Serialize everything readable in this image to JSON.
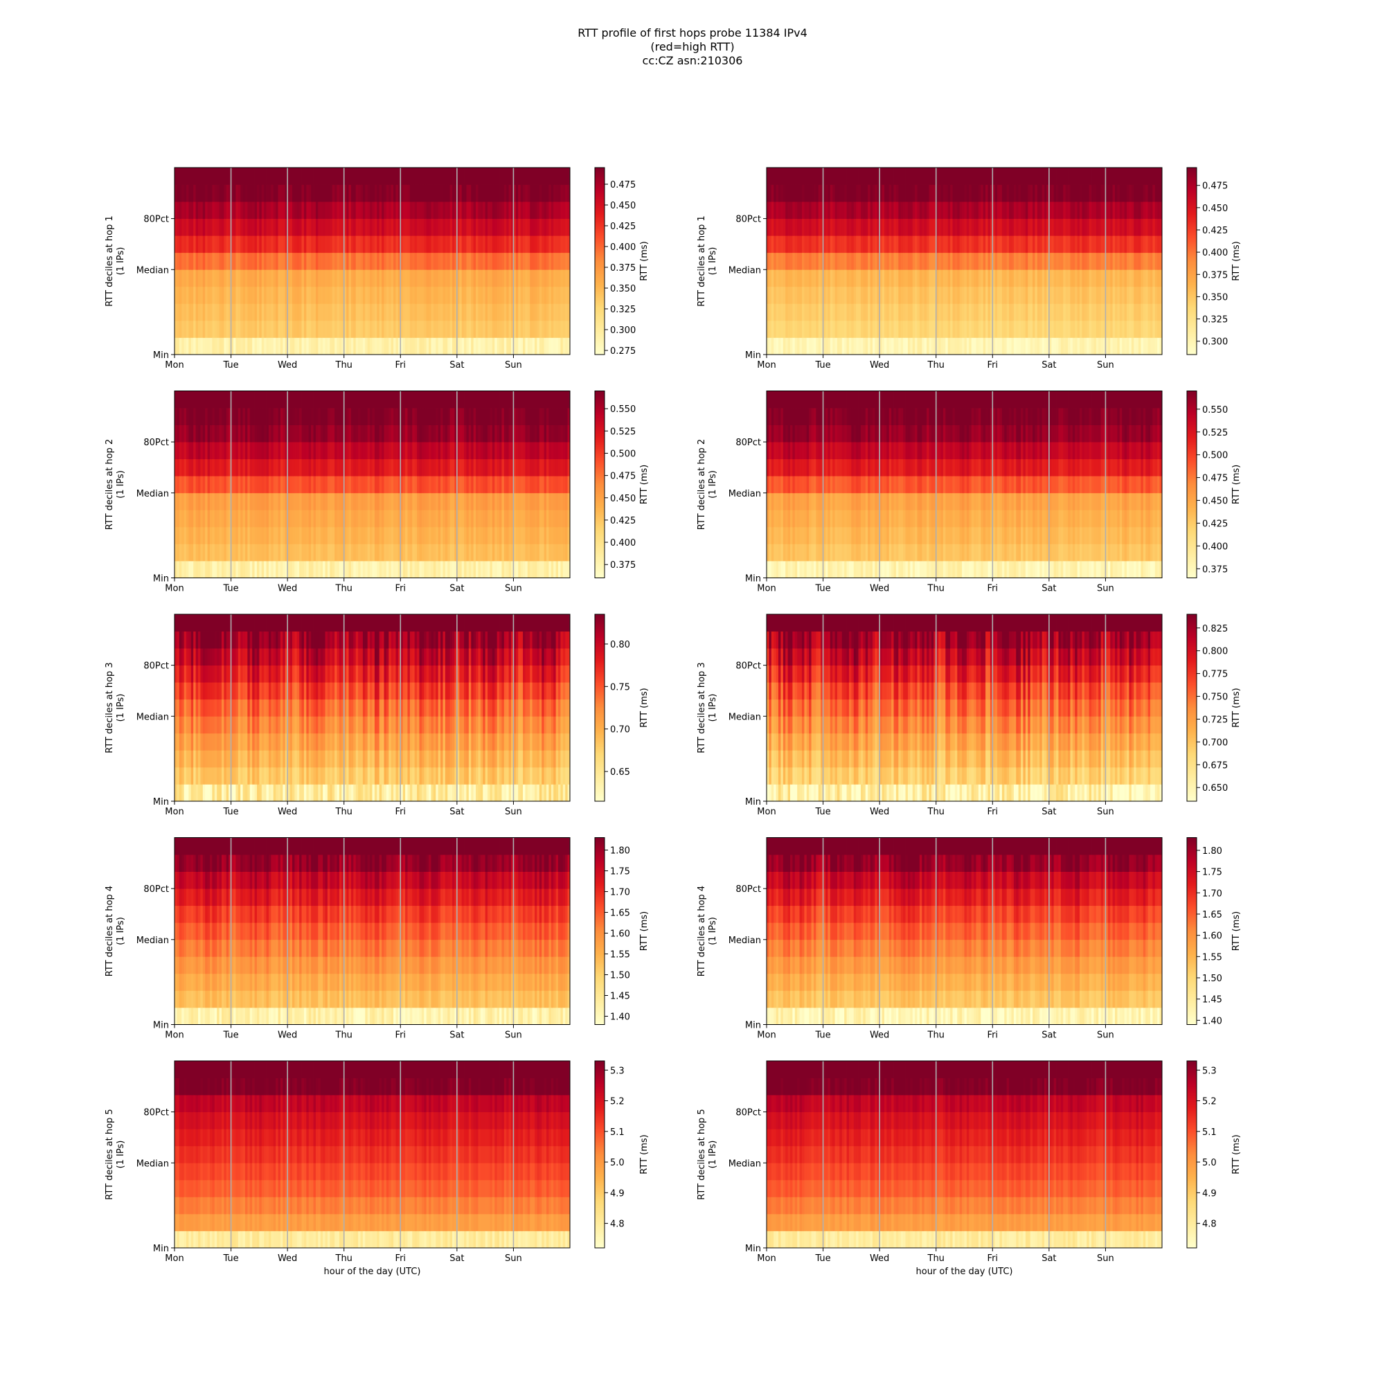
{
  "figure": {
    "title_lines": [
      "RTT profile of first hops probe 11384 IPv4",
      "(red=high RTT)",
      "cc:CZ asn:210306"
    ]
  },
  "colors": {
    "colormap": "YlOrRd",
    "grid_line": "#b0b0b0",
    "axes_edge": "#000000"
  },
  "chart_data": [
    {
      "type": "heatmap",
      "hop": 1,
      "column": "left",
      "ylabel": "RTT deciles at hop 1",
      "ylabel2": "(1 IPs)",
      "colorbar_label": "RTT (ms)",
      "colorbar_ticks": [
        "0.275",
        "0.300",
        "0.325",
        "0.350",
        "0.375",
        "0.400",
        "0.425",
        "0.450",
        "0.475"
      ],
      "clim": [
        0.27,
        0.495
      ],
      "decile_values": [
        0.29,
        0.338,
        0.345,
        0.352,
        0.36,
        0.395,
        0.43,
        0.455,
        0.475,
        0.495,
        0.495
      ],
      "variability": 0.012,
      "y_ticks": [
        "Min",
        "Median",
        "80Pct"
      ],
      "x_ticks": [
        "Mon",
        "Tue",
        "Wed",
        "Thu",
        "Fri",
        "Sat",
        "Sun"
      ],
      "xlabel": "",
      "seed": 11
    },
    {
      "type": "heatmap",
      "hop": 1,
      "column": "right",
      "ylabel": "RTT deciles at hop 1",
      "ylabel2": "(1 IPs)",
      "colorbar_label": "RTT (ms)",
      "colorbar_ticks": [
        "0.300",
        "0.325",
        "0.350",
        "0.375",
        "0.400",
        "0.425",
        "0.450",
        "0.475"
      ],
      "clim": [
        0.285,
        0.495
      ],
      "decile_values": [
        0.3,
        0.338,
        0.345,
        0.352,
        0.36,
        0.395,
        0.43,
        0.455,
        0.475,
        0.495,
        0.495
      ],
      "variability": 0.01,
      "y_ticks": [
        "Min",
        "Median",
        "80Pct"
      ],
      "x_ticks": [
        "Mon",
        "Tue",
        "Wed",
        "Thu",
        "Fri",
        "Sat",
        "Sun"
      ],
      "xlabel": "",
      "seed": 12
    },
    {
      "type": "heatmap",
      "hop": 2,
      "column": "left",
      "ylabel": "RTT deciles at hop 2",
      "ylabel2": "(1 IPs)",
      "colorbar_label": "RTT (ms)",
      "colorbar_ticks": [
        "0.375",
        "0.400",
        "0.425",
        "0.450",
        "0.475",
        "0.500",
        "0.525",
        "0.550"
      ],
      "clim": [
        0.36,
        0.57
      ],
      "decile_values": [
        0.38,
        0.43,
        0.438,
        0.445,
        0.452,
        0.49,
        0.52,
        0.54,
        0.56,
        0.57,
        0.57
      ],
      "variability": 0.012,
      "y_ticks": [
        "Min",
        "Median",
        "80Pct"
      ],
      "x_ticks": [
        "Mon",
        "Tue",
        "Wed",
        "Thu",
        "Fri",
        "Sat",
        "Sun"
      ],
      "xlabel": "",
      "seed": 21
    },
    {
      "type": "heatmap",
      "hop": 2,
      "column": "right",
      "ylabel": "RTT deciles at hop 2",
      "ylabel2": "(1 IPs)",
      "colorbar_label": "RTT (ms)",
      "colorbar_ticks": [
        "0.375",
        "0.400",
        "0.425",
        "0.450",
        "0.475",
        "0.500",
        "0.525",
        "0.550"
      ],
      "clim": [
        0.365,
        0.57
      ],
      "decile_values": [
        0.38,
        0.43,
        0.438,
        0.445,
        0.452,
        0.49,
        0.52,
        0.54,
        0.56,
        0.57,
        0.57
      ],
      "variability": 0.012,
      "y_ticks": [
        "Min",
        "Median",
        "80Pct"
      ],
      "x_ticks": [
        "Mon",
        "Tue",
        "Wed",
        "Thu",
        "Fri",
        "Sat",
        "Sun"
      ],
      "xlabel": "",
      "seed": 22
    },
    {
      "type": "heatmap",
      "hop": 3,
      "column": "left",
      "ylabel": "RTT deciles at hop 3",
      "ylabel2": "(1 IPs)",
      "colorbar_label": "RTT (ms)",
      "colorbar_ticks": [
        "0.65",
        "0.70",
        "0.75",
        "0.80"
      ],
      "clim": [
        0.615,
        0.835
      ],
      "decile_values": [
        0.64,
        0.68,
        0.695,
        0.71,
        0.725,
        0.74,
        0.76,
        0.78,
        0.8,
        0.82,
        0.835
      ],
      "variability": 0.03,
      "y_ticks": [
        "Min",
        "Median",
        "80Pct"
      ],
      "x_ticks": [
        "Mon",
        "Tue",
        "Wed",
        "Thu",
        "Fri",
        "Sat",
        "Sun"
      ],
      "xlabel": "",
      "seed": 31
    },
    {
      "type": "heatmap",
      "hop": 3,
      "column": "right",
      "ylabel": "RTT deciles at hop 3",
      "ylabel2": "(1 IPs)",
      "colorbar_label": "RTT (ms)",
      "colorbar_ticks": [
        "0.650",
        "0.675",
        "0.700",
        "0.725",
        "0.750",
        "0.775",
        "0.800",
        "0.825"
      ],
      "clim": [
        0.635,
        0.84
      ],
      "decile_values": [
        0.655,
        0.69,
        0.705,
        0.72,
        0.735,
        0.75,
        0.765,
        0.785,
        0.805,
        0.825,
        0.84
      ],
      "variability": 0.03,
      "y_ticks": [
        "Min",
        "Median",
        "80Pct"
      ],
      "x_ticks": [
        "Mon",
        "Tue",
        "Wed",
        "Thu",
        "Fri",
        "Sat",
        "Sun"
      ],
      "xlabel": "",
      "seed": 32
    },
    {
      "type": "heatmap",
      "hop": 4,
      "column": "left",
      "ylabel": "RTT deciles at hop 4",
      "ylabel2": "(1 IPs)",
      "colorbar_label": "RTT (ms)",
      "colorbar_ticks": [
        "1.40",
        "1.45",
        "1.50",
        "1.55",
        "1.60",
        "1.65",
        "1.70",
        "1.75",
        "1.80"
      ],
      "clim": [
        1.38,
        1.83
      ],
      "decile_values": [
        1.42,
        1.53,
        1.56,
        1.59,
        1.62,
        1.65,
        1.68,
        1.72,
        1.76,
        1.81,
        1.83
      ],
      "variability": 0.035,
      "y_ticks": [
        "Min",
        "Median",
        "80Pct"
      ],
      "x_ticks": [
        "Mon",
        "Tue",
        "Wed",
        "Thu",
        "Fri",
        "Sat",
        "Sun"
      ],
      "xlabel": "",
      "seed": 41
    },
    {
      "type": "heatmap",
      "hop": 4,
      "column": "right",
      "ylabel": "RTT deciles at hop 4",
      "ylabel2": "(1 IPs)",
      "colorbar_label": "RTT (ms)",
      "colorbar_ticks": [
        "1.40",
        "1.45",
        "1.50",
        "1.55",
        "1.60",
        "1.65",
        "1.70",
        "1.75",
        "1.80"
      ],
      "clim": [
        1.39,
        1.83
      ],
      "decile_values": [
        1.42,
        1.53,
        1.56,
        1.59,
        1.62,
        1.65,
        1.68,
        1.72,
        1.76,
        1.81,
        1.83
      ],
      "variability": 0.035,
      "y_ticks": [
        "Min",
        "Median",
        "80Pct"
      ],
      "x_ticks": [
        "Mon",
        "Tue",
        "Wed",
        "Thu",
        "Fri",
        "Sat",
        "Sun"
      ],
      "xlabel": "",
      "seed": 42
    },
    {
      "type": "heatmap",
      "hop": 5,
      "column": "left",
      "ylabel": "RTT deciles at hop 5",
      "ylabel2": "(1 IPs)",
      "colorbar_label": "RTT (ms)",
      "colorbar_ticks": [
        "4.8",
        "4.9",
        "5.0",
        "5.1",
        "5.2",
        "5.3"
      ],
      "clim": [
        4.72,
        5.33
      ],
      "decile_values": [
        4.8,
        4.99,
        5.04,
        5.08,
        5.11,
        5.14,
        5.17,
        5.2,
        5.24,
        5.33,
        5.33
      ],
      "variability": 0.03,
      "y_ticks": [
        "Min",
        "Median",
        "80Pct"
      ],
      "x_ticks": [
        "Mon",
        "Tue",
        "Wed",
        "Thu",
        "Fri",
        "Sat",
        "Sun"
      ],
      "xlabel": "hour of the day (UTC)",
      "seed": 51
    },
    {
      "type": "heatmap",
      "hop": 5,
      "column": "right",
      "ylabel": "RTT deciles at hop 5",
      "ylabel2": "(1 IPs)",
      "colorbar_label": "RTT (ms)",
      "colorbar_ticks": [
        "4.8",
        "4.9",
        "5.0",
        "5.1",
        "5.2",
        "5.3"
      ],
      "clim": [
        4.72,
        5.33
      ],
      "decile_values": [
        4.8,
        4.99,
        5.04,
        5.08,
        5.11,
        5.14,
        5.17,
        5.2,
        5.24,
        5.33,
        5.33
      ],
      "variability": 0.03,
      "y_ticks": [
        "Min",
        "Median",
        "80Pct"
      ],
      "x_ticks": [
        "Mon",
        "Tue",
        "Wed",
        "Thu",
        "Fri",
        "Sat",
        "Sun"
      ],
      "xlabel": "hour of the day (UTC)",
      "seed": 52
    }
  ]
}
